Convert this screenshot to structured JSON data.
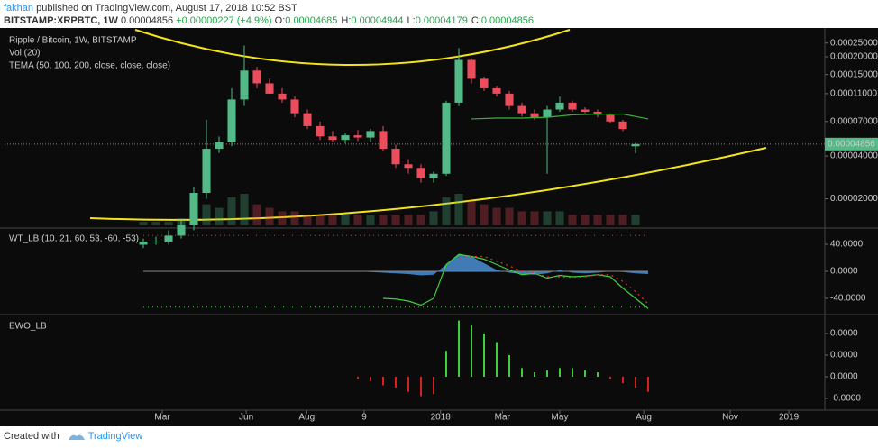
{
  "header": {
    "user": "fakhan",
    "published": "published on TradingView.com, August 17, 2018 10:52 BST",
    "symbol": "BITSTAMP:XRPBTC, 1W",
    "price": "0.00004856",
    "change": "+0.00000227 (+4.9%)",
    "ohlc": [
      {
        "label": "O:",
        "value": "0.00004685"
      },
      {
        "label": "H:",
        "value": "0.00004944"
      },
      {
        "label": "L:",
        "value": "0.00004179"
      },
      {
        "label": "C:",
        "value": "0.00004856"
      }
    ]
  },
  "chart_data": [
    {
      "type": "candlestick",
      "title": "Ripple / Bitcoin, 1W, BITSTAMP",
      "indicators": [
        "Vol (20)",
        "TEMA (50, 100, 200, close, close, close)"
      ],
      "log_scale": true,
      "color_up": "#53b987",
      "color_down": "#eb4d5c",
      "x": [
        22,
        24,
        26,
        28,
        30,
        32,
        34,
        36,
        38,
        40,
        42,
        44,
        46,
        48,
        50,
        52,
        54,
        56,
        58,
        60,
        62,
        64,
        66,
        68,
        70,
        72,
        74,
        76,
        78,
        80,
        82,
        84,
        86,
        88,
        90,
        92,
        94,
        96,
        98,
        100
      ],
      "open": [
        9.5e-06,
        1e-05,
        1e-05,
        1.1e-05,
        1.3e-05,
        2.2e-05,
        4.5e-05,
        5e-05,
        0.0001,
        0.00016,
        0.00013,
        0.00011,
        0.0001,
        8e-05,
        6.5e-05,
        5.5e-05,
        5.2e-05,
        5.6e-05,
        5.4e-05,
        6e-05,
        4.5e-05,
        3.5e-05,
        3.3e-05,
        2.8e-05,
        3e-05,
        9.5e-05,
        0.00019,
        0.00014,
        0.00012,
        0.00011,
        9e-05,
        8e-05,
        7.5e-05,
        8.5e-05,
        9.5e-05,
        8.5e-05,
        8.2e-05,
        7.8e-05,
        7e-05,
        4.685e-05
      ],
      "high": [
        1.05e-05,
        1.08e-05,
        1.2e-05,
        1.4e-05,
        2.4e-05,
        7.2e-05,
        5.5e-05,
        0.00012,
        0.00024,
        0.00017,
        0.00014,
        0.00012,
        0.000105,
        8.5e-05,
        7e-05,
        6e-05,
        5.8e-05,
        6.1e-05,
        6.2e-05,
        6.5e-05,
        4.8e-05,
        3.8e-05,
        3.5e-05,
        3.1e-05,
        9.8e-05,
        0.00023,
        0.000195,
        0.000145,
        0.000125,
        0.000115,
        9.5e-05,
        8.5e-05,
        9e-05,
        0.000105,
        9.8e-05,
        8.8e-05,
        8.5e-05,
        8e-05,
        7.2e-05,
        4.944e-05
      ],
      "low": [
        9e-06,
        9.5e-06,
        9.5e-06,
        1.05e-05,
        1.2e-05,
        2e-05,
        4.2e-05,
        4.7e-05,
        9e-05,
        0.00012,
        0.00011,
        9.5e-05,
        7.5e-05,
        6.2e-05,
        5.2e-05,
        5e-05,
        4.9e-05,
        5.1e-05,
        5e-05,
        4.3e-05,
        3.3e-05,
        3e-05,
        2.6e-05,
        2.6e-05,
        2.9e-05,
        9e-05,
        0.00013,
        0.000115,
        0.000105,
        8.5e-05,
        7.6e-05,
        7.2e-05,
        3e-05,
        8.2e-05,
        8.2e-05,
        8e-05,
        7.5e-05,
        6.8e-05,
        6e-05,
        4.179e-05
      ],
      "close": [
        1e-05,
        1e-05,
        1.1e-05,
        1.3e-05,
        2.2e-05,
        4.5e-05,
        5e-05,
        0.0001,
        0.00016,
        0.00013,
        0.00011,
        0.0001,
        8e-05,
        6.5e-05,
        5.5e-05,
        5.2e-05,
        5.6e-05,
        5.4e-05,
        6e-05,
        4.5e-05,
        3.5e-05,
        3.3e-05,
        2.8e-05,
        3e-05,
        9.5e-05,
        0.00019,
        0.00014,
        0.00012,
        0.00011,
        9e-05,
        8e-05,
        7.5e-05,
        8.5e-05,
        9.5e-05,
        8.5e-05,
        8.2e-05,
        7.8e-05,
        7e-05,
        6.2e-05,
        4.856e-05
      ],
      "volume": [
        1,
        1,
        1,
        2,
        4,
        6,
        5,
        8,
        9,
        6,
        5,
        4,
        4,
        3,
        3,
        3,
        3,
        3,
        3,
        3,
        3,
        3,
        3,
        4,
        8,
        9,
        7,
        6,
        5,
        5,
        4,
        4,
        4,
        4,
        3,
        3,
        3,
        3,
        3,
        3
      ],
      "tema": {
        "color": "#3bb33b",
        "x": [
          74,
          78,
          82,
          86,
          90,
          94,
          98,
          102
        ],
        "values": [
          7.3e-05,
          7.4e-05,
          7.4e-05,
          7.5e-05,
          7.8e-05,
          7.9e-05,
          7.9e-05,
          7.3e-05
        ]
      },
      "last_price": {
        "value": 4.856e-05,
        "label": "0.00004856"
      },
      "xlim": [
        0,
        130
      ],
      "xticks": [
        {
          "value": 25,
          "label": "Mar"
        },
        {
          "value": 38.3,
          "label": "Jun"
        },
        {
          "value": 47.9,
          "label": "Aug"
        },
        {
          "value": 57,
          "label": "9"
        },
        {
          "value": 69.1,
          "label": "2018"
        },
        {
          "value": 78.9,
          "label": "Mar"
        },
        {
          "value": 88,
          "label": "May"
        },
        {
          "value": 101.3,
          "label": "Aug"
        },
        {
          "value": 115,
          "label": "Nov"
        },
        {
          "value": 124.3,
          "label": "2019"
        }
      ],
      "ylim": [
        1.3e-05,
        0.00031
      ],
      "yticks": [
        {
          "value": 0.00025,
          "label": "0.00025000"
        },
        {
          "value": 0.0002,
          "label": "0.00020000"
        },
        {
          "value": 0.00015,
          "label": "0.00015000"
        },
        {
          "value": 0.00011,
          "label": "0.00011000"
        },
        {
          "value": 7e-05,
          "label": "0.00007000"
        },
        {
          "value": 4e-05,
          "label": "0.00004000"
        },
        {
          "value": 2e-05,
          "label": "0.00002000"
        }
      ]
    },
    {
      "type": "wt",
      "title": "WT_LB (10, 21, 60, 53, -60, -53)",
      "levels": [
        53,
        -53
      ],
      "x": [
        56,
        58,
        60,
        62,
        64,
        66,
        68,
        70,
        72,
        74,
        76,
        78,
        80,
        82,
        84,
        86,
        88,
        90,
        92,
        94,
        96,
        98,
        100,
        102
      ],
      "series": [
        {
          "color": "#4a8fd4",
          "values": [
            0,
            -1,
            -2,
            -3,
            -4,
            -6,
            -5,
            10,
            26,
            22,
            12,
            2,
            -2,
            -4,
            -5,
            -3,
            2,
            -2,
            -3,
            -2,
            0,
            -1,
            -3,
            -4
          ]
        },
        {
          "color": "#3bd13b",
          "values": [
            null,
            null,
            -40,
            -41,
            -44,
            -50,
            -40,
            10,
            25,
            22,
            18,
            10,
            2,
            -5,
            -3,
            -10,
            -6,
            -8,
            -7,
            -5,
            -8,
            -25,
            -40,
            -55
          ]
        },
        {
          "color": "#e03030",
          "values": [
            null,
            null,
            null,
            null,
            null,
            null,
            null,
            null,
            20,
            22,
            22,
            15,
            8,
            0,
            -2,
            -8,
            -8,
            -9,
            -8,
            -5,
            -5,
            -15,
            -30,
            -48
          ]
        }
      ],
      "ylim": [
        -60,
        60
      ],
      "yticks": [
        {
          "value": 40,
          "label": "40.0000"
        },
        {
          "value": 0,
          "label": "0.0000"
        },
        {
          "value": -40,
          "label": "-40.0000"
        }
      ]
    },
    {
      "type": "ewo",
      "title": "EWO_LB",
      "color_up": "#3bd13b",
      "color_down": "#d42020",
      "x": [
        56,
        58,
        60,
        62,
        64,
        66,
        68,
        70,
        72,
        74,
        76,
        78,
        80,
        82,
        84,
        86,
        88,
        90,
        92,
        94,
        96,
        98,
        100,
        102
      ],
      "values": [
        -1e-06,
        -2e-06,
        -4e-06,
        -5e-06,
        -7e-06,
        -9e-06,
        -8e-06,
        1.2e-05,
        2.6e-05,
        2.4e-05,
        2e-05,
        1.6e-05,
        1e-05,
        4e-06,
        2e-06,
        3e-06,
        4e-06,
        4e-06,
        3e-06,
        2e-06,
        -1e-06,
        -3e-06,
        -5e-06,
        -7e-06
      ],
      "ylim": [
        -1.42e-05,
        2.75e-05
      ],
      "yticks": [
        {
          "value": 2e-05,
          "label": "0.0000"
        },
        {
          "value": 1e-05,
          "label": "0.0000"
        },
        {
          "value": 0,
          "label": "0.0000"
        },
        {
          "value": -1e-05,
          "label": "-0.0000"
        }
      ]
    }
  ],
  "footer": {
    "created": "Created with",
    "brand": "TradingView"
  }
}
